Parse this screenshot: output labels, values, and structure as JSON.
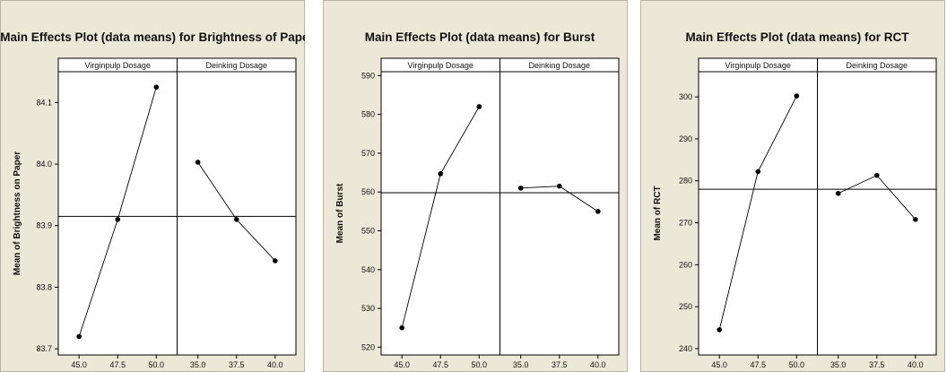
{
  "chart_data": [
    {
      "type": "line",
      "title": "Main Effects Plot (data means) for Brightness of Paper",
      "ylabel": "Mean of Brightness on Paper",
      "ylim": [
        83.69,
        84.15
      ],
      "yticks": [
        83.7,
        83.8,
        83.9,
        84.0,
        84.1
      ],
      "ytick_labels": [
        "83.7",
        "83.8",
        "83.9",
        "84.0",
        "84.1"
      ],
      "grand_mean": 83.915,
      "panels": [
        {
          "name": "Virginpulp Dosage",
          "x": [
            "45.0",
            "47.5",
            "50.0"
          ],
          "y": [
            83.72,
            83.91,
            84.125
          ]
        },
        {
          "name": "Deinking Dosage",
          "x": [
            "35.0",
            "37.5",
            "40.0"
          ],
          "y": [
            84.003,
            83.91,
            83.843
          ]
        }
      ]
    },
    {
      "type": "line",
      "title": "Main Effects Plot (data means) for Burst",
      "ylabel": "Mean of Burst",
      "ylim": [
        518,
        591
      ],
      "yticks": [
        520,
        530,
        540,
        550,
        560,
        570,
        580,
        590
      ],
      "ytick_labels": [
        "520",
        "530",
        "540",
        "550",
        "560",
        "570",
        "580",
        "590"
      ],
      "grand_mean": 559.8,
      "panels": [
        {
          "name": "Virginpulp Dosage",
          "x": [
            "45.0",
            "47.5",
            "50.0"
          ],
          "y": [
            525,
            564.7,
            582
          ]
        },
        {
          "name": "Deinking Dosage",
          "x": [
            "35.0",
            "37.5",
            "40.0"
          ],
          "y": [
            561,
            561.5,
            555
          ]
        }
      ]
    },
    {
      "type": "line",
      "title": "Main Effects Plot (data means) for RCT",
      "ylabel": "Mean of RCT",
      "ylim": [
        238.5,
        306
      ],
      "yticks": [
        240,
        250,
        260,
        270,
        280,
        290,
        300
      ],
      "ytick_labels": [
        "240",
        "250",
        "260",
        "270",
        "280",
        "290",
        "300"
      ],
      "grand_mean": 278,
      "panels": [
        {
          "name": "Virginpulp Dosage",
          "x": [
            "45.0",
            "47.5",
            "50.0"
          ],
          "y": [
            244.5,
            282.2,
            300.2
          ]
        },
        {
          "name": "Deinking Dosage",
          "x": [
            "35.0",
            "37.5",
            "40.0"
          ],
          "y": [
            277,
            281.3,
            270.8
          ]
        }
      ]
    }
  ]
}
